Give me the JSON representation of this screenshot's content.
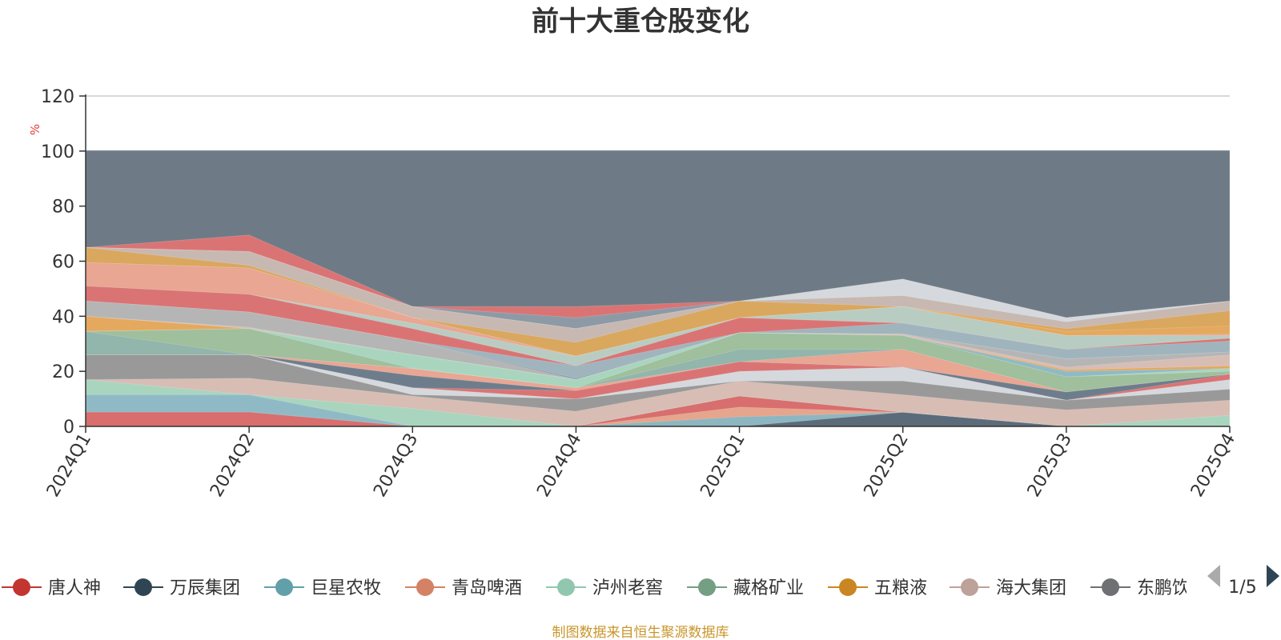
{
  "chart_data": {
    "type": "area",
    "title": "前十大重仓股变化",
    "ylabel": "%",
    "ylim": [
      0,
      120
    ],
    "yticks": [
      0,
      20,
      40,
      60,
      80,
      100,
      120
    ],
    "categories": [
      "2024Q1",
      "2024Q2",
      "2024Q3",
      "2024Q4",
      "2025Q1",
      "2025Q2",
      "2025Q3",
      "2025Q4"
    ],
    "stacked": true,
    "grid": true,
    "legend_position": "bottom",
    "layers": [
      {
        "values": [
          0,
          0,
          0,
          0,
          0,
          5.1,
          0,
          0
        ],
        "color": "#5c6b7a"
      },
      {
        "values": [
          0,
          0,
          0,
          0,
          3.5,
          5.1,
          0,
          0
        ],
        "color": "#8db6c0"
      },
      {
        "values": [
          0,
          0,
          0,
          0,
          7.0,
          5.1,
          0,
          0
        ],
        "color": "#e6a58d"
      },
      {
        "values": [
          5.2,
          5.2,
          0,
          0,
          11.0,
          5.1,
          0,
          0
        ],
        "color": "#d86e6e"
      },
      {
        "values": [
          11.5,
          11.5,
          0,
          0,
          11.0,
          5.1,
          0,
          0
        ],
        "color": "#8fbac5"
      },
      {
        "values": [
          17.0,
          11.5,
          6.5,
          0,
          11.0,
          5.1,
          0,
          4.0
        ],
        "color": "#a9d5bf"
      },
      {
        "values": [
          17.0,
          17.5,
          11.0,
          5.5,
          16.5,
          11.5,
          6.0,
          9.5
        ],
        "color": "#d7bdb4"
      },
      {
        "values": [
          26.0,
          26.0,
          11.5,
          10.0,
          16.5,
          16.5,
          9.5,
          13.5
        ],
        "color": "#999999"
      },
      {
        "values": [
          26.0,
          26.0,
          14.0,
          10.0,
          20.0,
          21.5,
          9.5,
          17.0
        ],
        "color": "#d5d9dd"
      },
      {
        "values": [
          26.0,
          26.0,
          14.0,
          13.0,
          23.5,
          21.5,
          9.5,
          19.0
        ],
        "color": "#da7474"
      },
      {
        "values": [
          26.0,
          26.0,
          18.5,
          13.0,
          23.5,
          21.5,
          12.5,
          19.0
        ],
        "color": "#6e7d8c"
      },
      {
        "values": [
          26.0,
          26.0,
          21.0,
          14.0,
          23.5,
          28.0,
          12.5,
          19.0
        ],
        "color": "#e8a693"
      },
      {
        "values": [
          34.5,
          26.0,
          21.0,
          14.0,
          28.0,
          28.0,
          12.5,
          19.0
        ],
        "color": "#92b5ac"
      },
      {
        "values": [
          34.5,
          35.5,
          21.0,
          14.0,
          34.0,
          33.0,
          18.0,
          20.0
        ],
        "color": "#9fbf9d"
      },
      {
        "values": [
          34.5,
          35.5,
          26.0,
          17.0,
          34.0,
          33.0,
          18.0,
          21.0
        ],
        "color": "#a9d5bf"
      },
      {
        "values": [
          34.5,
          35.5,
          26.0,
          17.0,
          34.0,
          33.0,
          20.0,
          21.0
        ],
        "color": "#8fbac5"
      },
      {
        "values": [
          40.0,
          35.5,
          26.0,
          17.0,
          34.0,
          33.0,
          20.5,
          22.0
        ],
        "color": "#e4a95e"
      },
      {
        "values": [
          40.0,
          36.0,
          26.0,
          17.0,
          34.0,
          33.5,
          21.5,
          26.0
        ],
        "color": "#d7bdb4"
      },
      {
        "values": [
          45.5,
          41.5,
          31.0,
          17.0,
          34.0,
          33.5,
          24.5,
          27.0
        ],
        "color": "#b5b5b5"
      },
      {
        "values": [
          45.5,
          41.5,
          31.0,
          17.5,
          34.0,
          33.5,
          24.5,
          27.0
        ],
        "color": "#8d9ba8"
      },
      {
        "values": [
          45.5,
          41.5,
          31.0,
          22.0,
          34.0,
          37.5,
          28.0,
          31.0
        ],
        "color": "#a0b4bd"
      },
      {
        "values": [
          51.0,
          48.0,
          35.5,
          22.0,
          39.5,
          37.5,
          28.0,
          32.0
        ],
        "color": "#da7474"
      },
      {
        "values": [
          51.0,
          48.0,
          37.5,
          25.5,
          39.5,
          43.5,
          33.0,
          33.0
        ],
        "color": "#b9ccc2"
      },
      {
        "values": [
          59.5,
          57.5,
          39.5,
          25.5,
          39.5,
          43.5,
          33.0,
          33.5
        ],
        "color": "#e8a693"
      },
      {
        "values": [
          59.5,
          57.5,
          39.5,
          25.5,
          39.5,
          43.5,
          34.5,
          36.5
        ],
        "color": "#e4a95e"
      },
      {
        "values": [
          65.0,
          58.5,
          39.5,
          30.5,
          45.5,
          43.5,
          35.5,
          42.0
        ],
        "color": "#d9a75e"
      },
      {
        "values": [
          65.0,
          63.5,
          43.5,
          35.5,
          45.5,
          47.5,
          38.0,
          45.5
        ],
        "color": "#c8b8b2"
      },
      {
        "values": [
          65.0,
          63.5,
          43.5,
          35.5,
          45.5,
          53.5,
          39.5,
          45.5
        ],
        "color": "#d5d9dd"
      },
      {
        "values": [
          65.0,
          63.5,
          43.5,
          39.5,
          45.5,
          53.5,
          39.5,
          45.5
        ],
        "color": "#8d9aa6"
      },
      {
        "values": [
          65.0,
          69.5,
          43.5,
          43.5,
          45.5,
          53.5,
          39.5,
          45.5
        ],
        "color": "#da7474"
      },
      {
        "values": [
          100,
          100,
          100,
          100,
          100,
          100,
          100,
          100
        ],
        "color": "#6e7b86"
      }
    ]
  },
  "legend": {
    "items": [
      {
        "label": "唐人神",
        "color": "#c23531"
      },
      {
        "label": "万辰集团",
        "color": "#2f4554"
      },
      {
        "label": "巨星农牧",
        "color": "#61a0a8"
      },
      {
        "label": "青岛啤酒",
        "color": "#d48265"
      },
      {
        "label": "泸州老窖",
        "color": "#91c7ae"
      },
      {
        "label": "藏格矿业",
        "color": "#749f83"
      },
      {
        "label": "五粮液",
        "color": "#ca8622"
      },
      {
        "label": "海大集团",
        "color": "#bda29a"
      },
      {
        "label": "东鹏饮料",
        "color": "#6e7074"
      }
    ],
    "page_indicator": "1/5"
  },
  "source_note": "制图数据来自恒生聚源数据库"
}
